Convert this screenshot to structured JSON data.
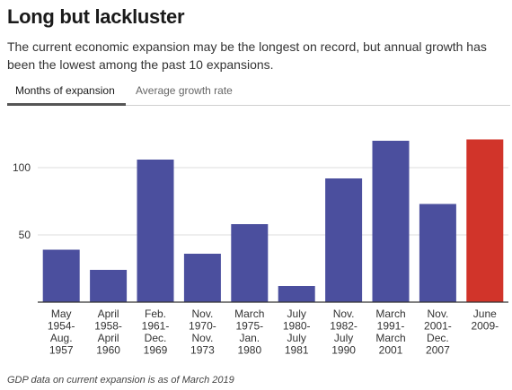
{
  "header": {
    "title": "Long but lackluster",
    "subtitle": "The current economic expansion may be the longest on record, but annual growth has been the lowest among the past 10 expansions."
  },
  "tabs": [
    {
      "label": "Months of expansion",
      "active": true
    },
    {
      "label": "Average growth rate",
      "active": false
    }
  ],
  "footnote": "GDP data on current expansion is as of March 2019",
  "colors": {
    "bar": "#4b4f9e",
    "highlight": "#d1342a",
    "grid": "#dddddd",
    "axis": "#333333"
  },
  "chart_data": {
    "type": "bar",
    "title": "",
    "xlabel": "",
    "ylabel": "",
    "ylim": [
      0,
      130
    ],
    "yticks": [
      50,
      100
    ],
    "grid": true,
    "categories": [
      [
        "May",
        "1954-",
        "Aug.",
        "1957"
      ],
      [
        "April",
        "1958-",
        "April",
        "1960"
      ],
      [
        "Feb.",
        "1961-",
        "Dec.",
        "1969"
      ],
      [
        "Nov.",
        "1970-",
        "Nov.",
        "1973"
      ],
      [
        "March",
        "1975-",
        "Jan.",
        "1980"
      ],
      [
        "July",
        "1980-",
        "July",
        "1981"
      ],
      [
        "Nov.",
        "1982-",
        "July",
        "1990"
      ],
      [
        "March",
        "1991-",
        "March",
        "2001"
      ],
      [
        "Nov.",
        "2001-",
        "Dec.",
        "2007"
      ],
      [
        "June",
        "2009-"
      ]
    ],
    "values": [
      39,
      24,
      106,
      36,
      58,
      12,
      92,
      120,
      73,
      121
    ],
    "highlight_index": 9
  }
}
